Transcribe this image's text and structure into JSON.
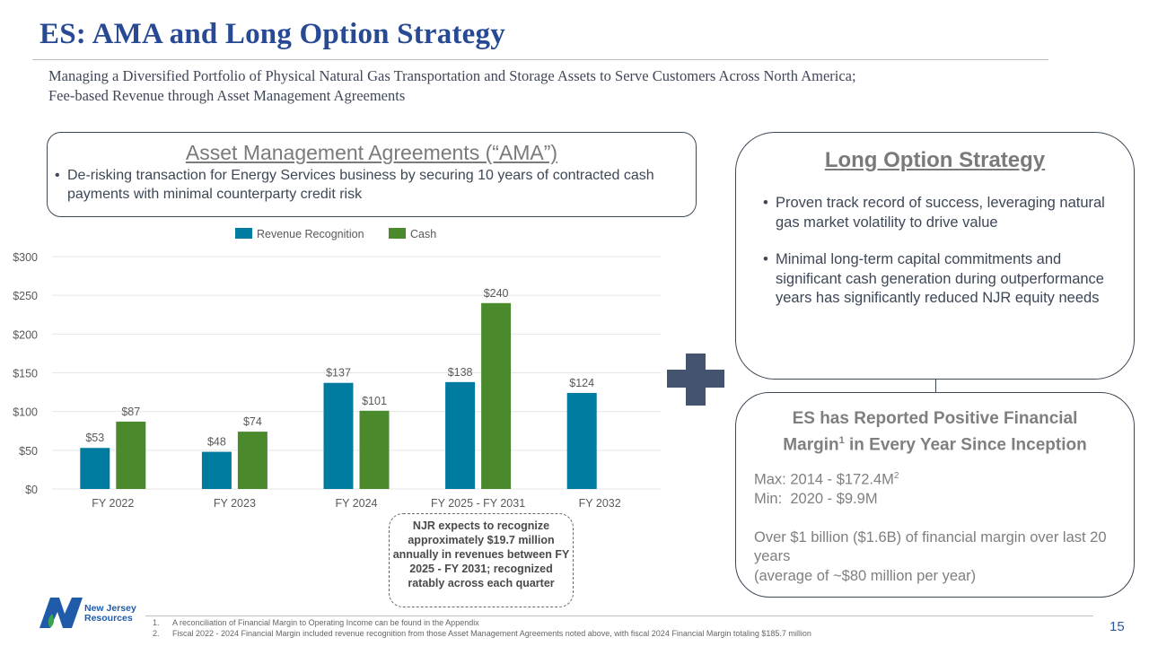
{
  "header": {
    "title": "ES: AMA and Long Option Strategy",
    "subtitle_line1": "Managing a Diversified Portfolio of Physical Natural Gas Transportation and Storage Assets to Serve Customers Across North America;",
    "subtitle_line2": "Fee-based Revenue through Asset Management Agreements"
  },
  "ama": {
    "heading": "Asset Management Agreements (“AMA”)",
    "bullet": "De-risking transaction for Energy Services business by securing 10 years of contracted cash payments with minimal counterparty credit risk"
  },
  "long_option": {
    "heading": "Long Option Strategy",
    "bullets": [
      "Proven track record of success, leveraging natural gas market volatility to drive value",
      "Minimal long-term capital commitments and significant cash generation during outperformance years has significantly reduced NJR equity needs"
    ]
  },
  "es_margin": {
    "heading_a": "ES has Reported Positive Financial",
    "heading_b": "Margin",
    "heading_sup": "1",
    "heading_c": " in Every Year Since Inception",
    "max_label": "Max: 2014 - $172.4M",
    "max_sup": "2",
    "min_label": "Min:  2020 - $9.9M",
    "total_line1": "Over $1 billion ($1.6B) of financial margin over last 20 years",
    "total_line2": "(average of ~$80 million per year)"
  },
  "note": {
    "text": "NJR expects to recognize approximately $19.7 million annually in revenues between FY 2025 - FY 2031; recognized ratably across each quarter"
  },
  "icons": {
    "plus": "plus-icon",
    "logo": "njr-logo-icon"
  },
  "logo": {
    "line1": "New Jersey",
    "line2": "Resources"
  },
  "footnotes": [
    {
      "num": "1.",
      "text": "A reconciliation of Financial Margin to Operating Income can be found in the Appendix"
    },
    {
      "num": "2.",
      "text": "Fiscal 2022 - 2024 Financial Margin included revenue recognition from those Asset Management Agreements noted above, with fiscal 2024 Financial Margin totaling $185.7 million"
    }
  ],
  "page_number": "15",
  "colors": {
    "revenue": "#007ba0",
    "cash": "#4a8a2c",
    "title": "#284a94",
    "plus": "#45546e"
  },
  "chart_data": {
    "type": "bar",
    "title": "",
    "xlabel": "",
    "ylabel": "",
    "categories": [
      "FY 2022",
      "FY 2023",
      "FY 2024",
      "FY 2025 - FY 2031",
      "FY 2032"
    ],
    "series": [
      {
        "name": "Revenue Recognition",
        "values": [
          53,
          48,
          137,
          138,
          124
        ],
        "labels": [
          "$53",
          "$48",
          "$137",
          "$138",
          "$124"
        ]
      },
      {
        "name": "Cash",
        "values": [
          87,
          74,
          101,
          240,
          null
        ],
        "labels": [
          "$87",
          "$74",
          "$101",
          "$240",
          ""
        ]
      }
    ],
    "ylim": [
      0,
      300
    ],
    "yticks": [
      0,
      50,
      100,
      150,
      200,
      250,
      300
    ],
    "ytick_labels": [
      "$0",
      "$50",
      "$100",
      "$150",
      "$200",
      "$250",
      "$300"
    ],
    "grid": true,
    "legend": "top-center"
  }
}
